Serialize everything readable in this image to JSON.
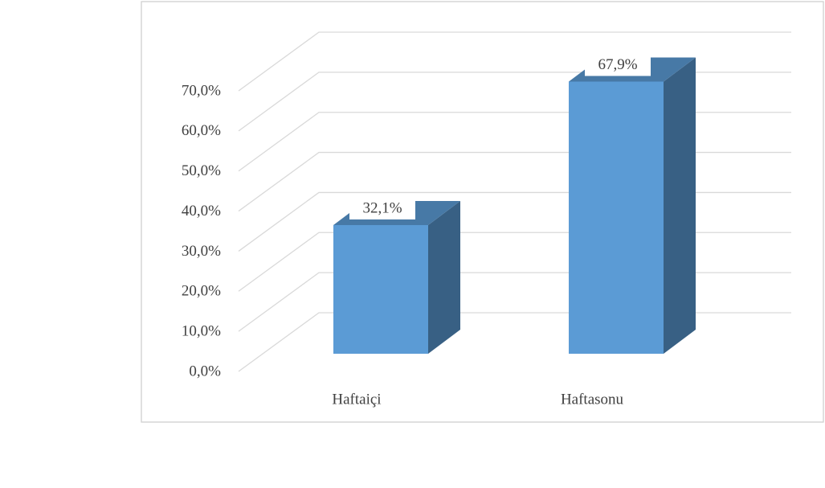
{
  "chart_data": {
    "type": "bar3d",
    "categories": [
      "Haftaiçi",
      "Haftasonu"
    ],
    "values": [
      32.1,
      67.9
    ],
    "value_labels": [
      "32,1%",
      "67,9%"
    ],
    "color": "#5b9bd5",
    "ylim": [
      0,
      70
    ],
    "yticks": [
      {
        "value": 0,
        "label": "0,0%"
      },
      {
        "value": 10,
        "label": "10,0%"
      },
      {
        "value": 20,
        "label": "20,0%"
      },
      {
        "value": 30,
        "label": "30,0%"
      },
      {
        "value": 40,
        "label": "40,0%"
      },
      {
        "value": 50,
        "label": "50,0%"
      },
      {
        "value": 60,
        "label": "60,0%"
      },
      {
        "value": 70,
        "label": "70,0%"
      }
    ],
    "grid": true
  }
}
